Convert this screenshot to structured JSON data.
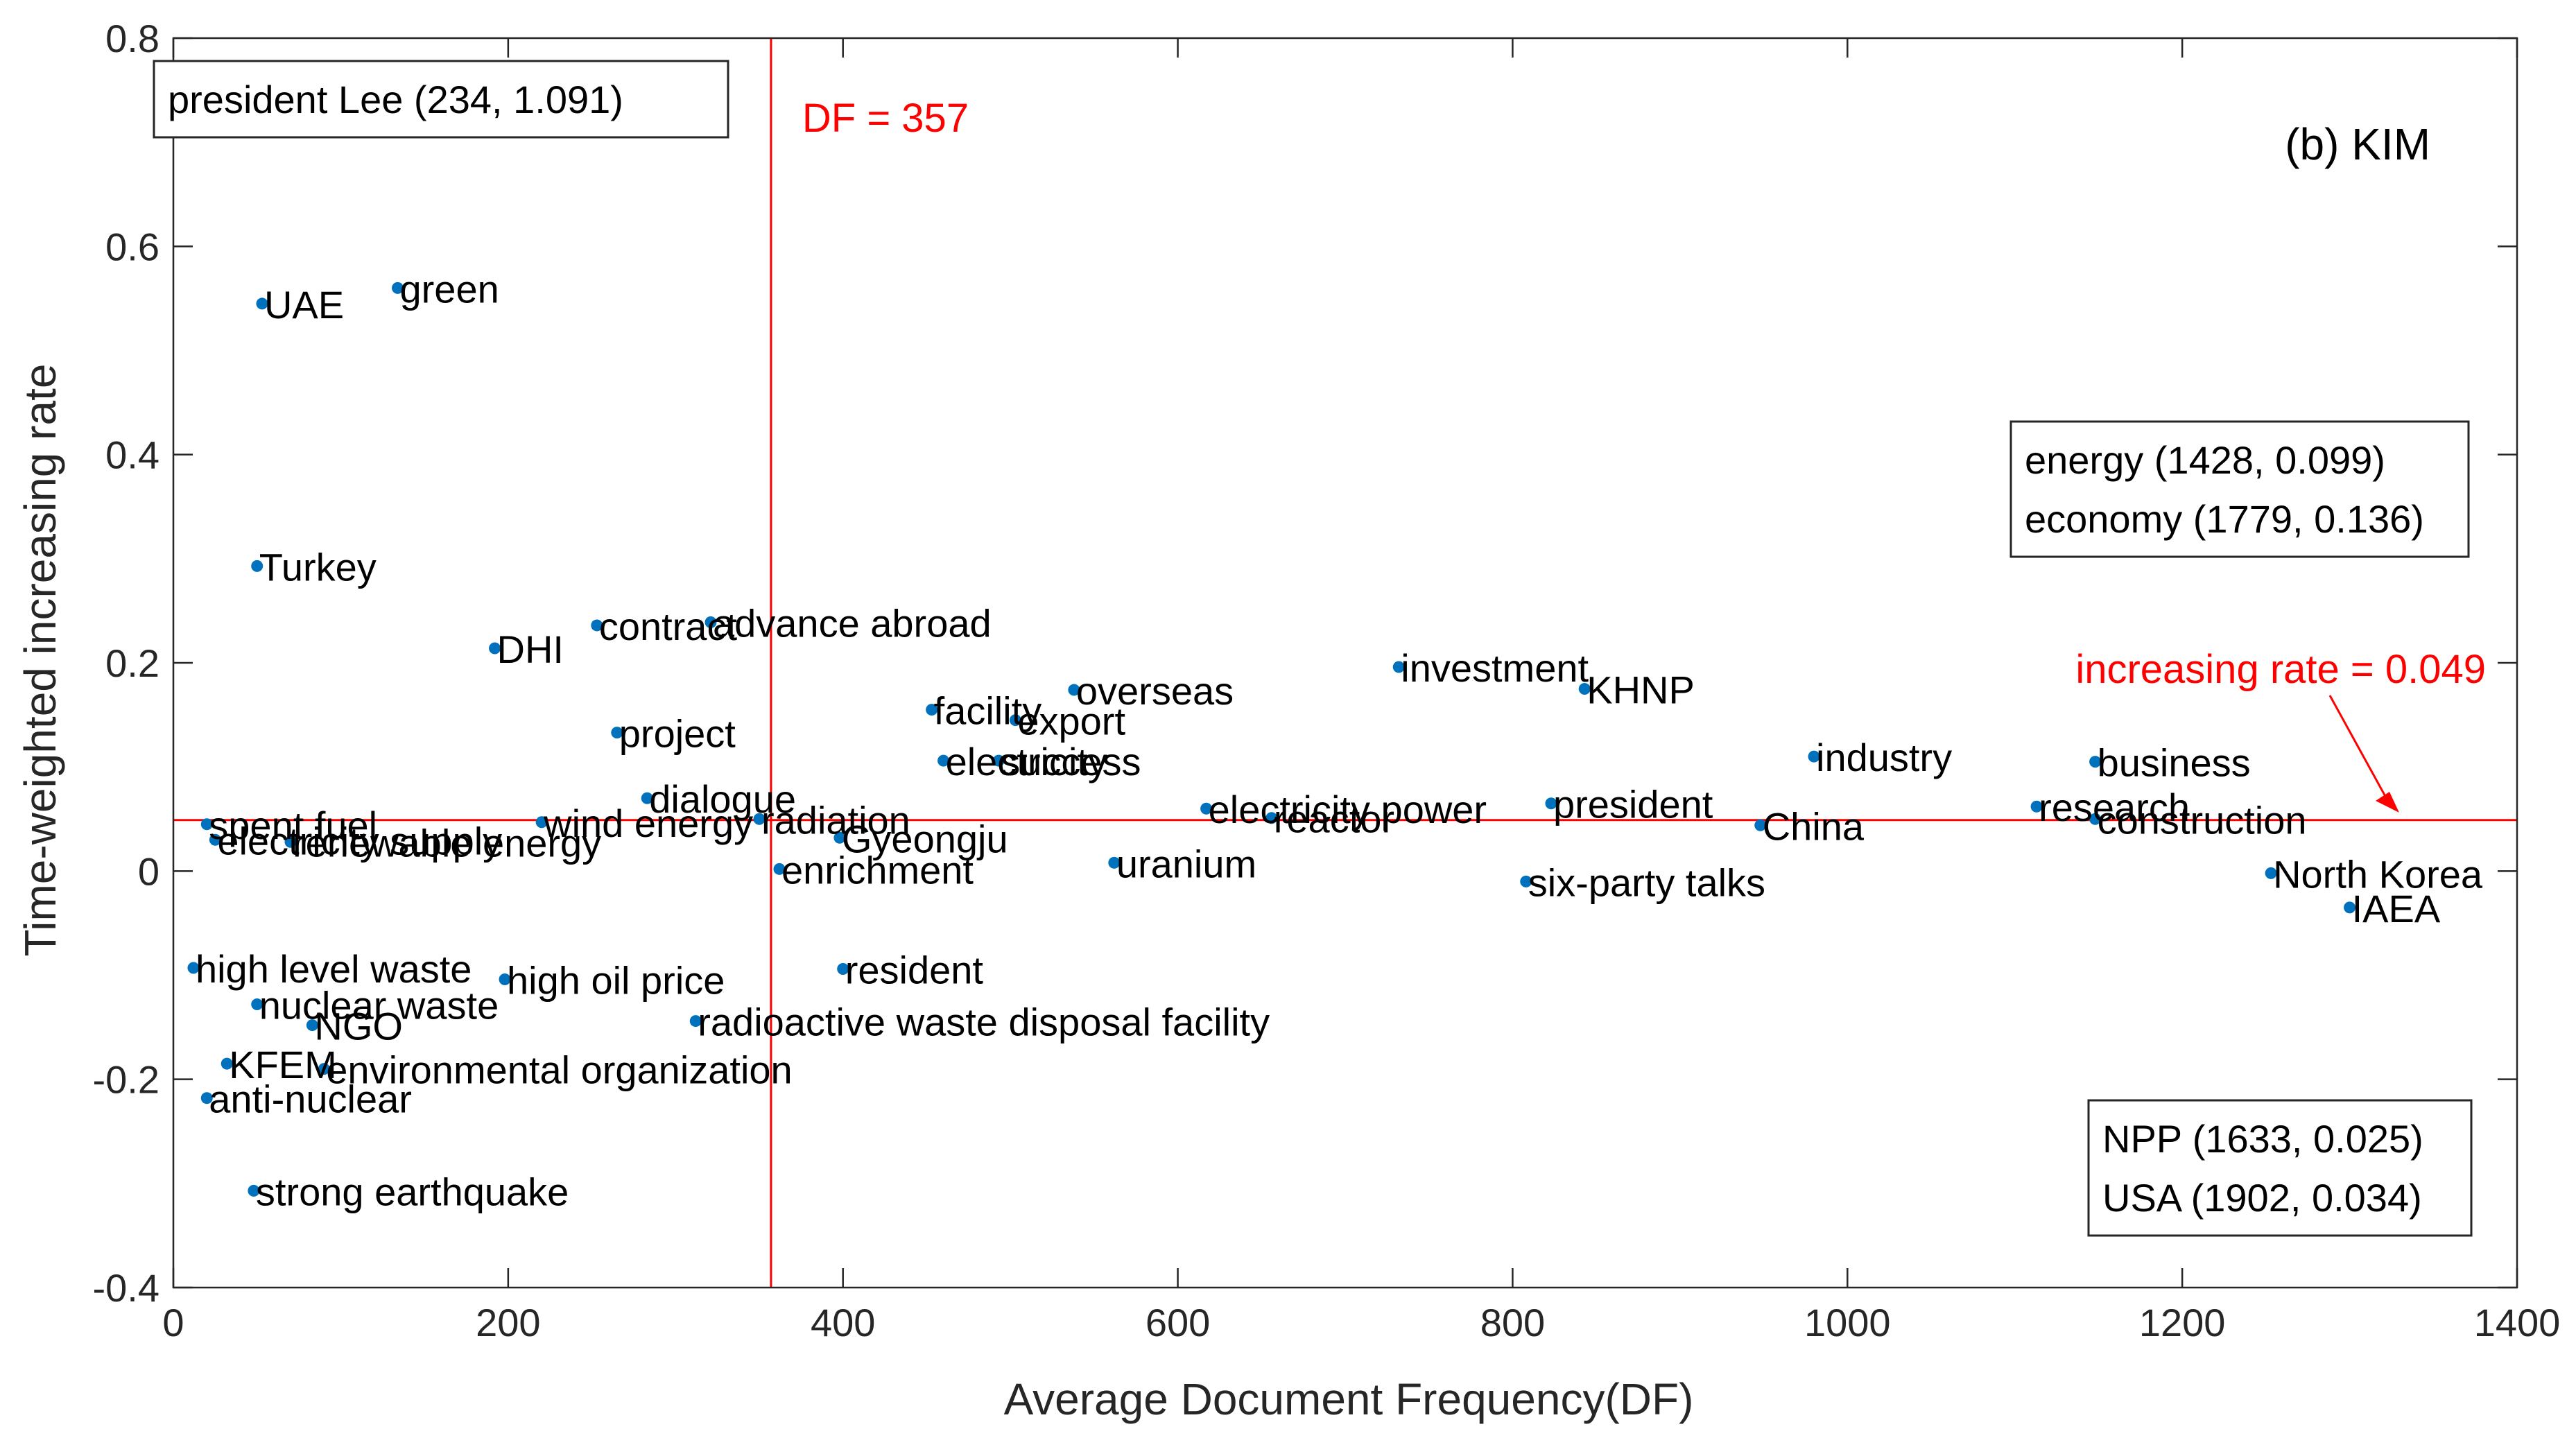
{
  "chart_data": {
    "type": "scatter",
    "title": "",
    "panel_label": "(b) KIM",
    "xlabel": "Average Document Frequency(DF)",
    "ylabel": "Time-weighted increasing rate",
    "xlim": [
      0,
      1400
    ],
    "ylim": [
      -0.4,
      0.8
    ],
    "xticks": [
      0,
      200,
      400,
      600,
      800,
      1000,
      1200,
      1400
    ],
    "yticks": [
      -0.4,
      -0.2,
      0,
      0.2,
      0.4,
      0.6,
      0.8
    ],
    "grid": false,
    "marker_color": "#0072BD",
    "reference_color": "#ff0000",
    "reference_lines": {
      "vertical": {
        "x": 357,
        "label": "DF = 357"
      },
      "horizontal": {
        "y": 0.049,
        "label": "increasing rate = 0.049"
      }
    },
    "info_boxes": {
      "top_left": [
        "president Lee (234, 1.091)"
      ],
      "right": [
        "energy (1428, 0.099)",
        "economy (1779, 0.136)"
      ],
      "bottom_right": [
        "NPP (1633, 0.025)",
        "USA (1902, 0.034)"
      ]
    },
    "points": [
      {
        "label": "UAE",
        "x": 53,
        "y": 0.545
      },
      {
        "label": "green",
        "x": 134,
        "y": 0.56
      },
      {
        "label": "Turkey",
        "x": 50,
        "y": 0.293
      },
      {
        "label": "DHI",
        "x": 192,
        "y": 0.214
      },
      {
        "label": "contract",
        "x": 253,
        "y": 0.236
      },
      {
        "label": "advance abroad",
        "x": 321,
        "y": 0.239
      },
      {
        "label": "project",
        "x": 265,
        "y": 0.133
      },
      {
        "label": "dialogue",
        "x": 283,
        "y": 0.07
      },
      {
        "label": "spent fuel",
        "x": 20,
        "y": 0.045
      },
      {
        "label": "electricity supply",
        "x": 25,
        "y": 0.03
      },
      {
        "label": "renewable energy",
        "x": 70,
        "y": 0.028
      },
      {
        "label": "wind energy",
        "x": 220,
        "y": 0.047
      },
      {
        "label": "radiation",
        "x": 350,
        "y": 0.05
      },
      {
        "label": "Gyeongju",
        "x": 398,
        "y": 0.032
      },
      {
        "label": "enrichment",
        "x": 362,
        "y": 0.002
      },
      {
        "label": "facility",
        "x": 453,
        "y": 0.155
      },
      {
        "label": "export",
        "x": 503,
        "y": 0.145
      },
      {
        "label": "overseas",
        "x": 538,
        "y": 0.174
      },
      {
        "label": "electricity",
        "x": 460,
        "y": 0.106
      },
      {
        "label": "success",
        "x": 493,
        "y": 0.106
      },
      {
        "label": "uranium",
        "x": 562,
        "y": 0.008
      },
      {
        "label": "electricity power",
        "x": 617,
        "y": 0.06
      },
      {
        "label": "reactor",
        "x": 656,
        "y": 0.051
      },
      {
        "label": "investment",
        "x": 732,
        "y": 0.196
      },
      {
        "label": "KHNP",
        "x": 843,
        "y": 0.175
      },
      {
        "label": "president",
        "x": 823,
        "y": 0.065
      },
      {
        "label": "six-party talks",
        "x": 808,
        "y": -0.01
      },
      {
        "label": "China",
        "x": 948,
        "y": 0.044
      },
      {
        "label": "industry",
        "x": 980,
        "y": 0.11
      },
      {
        "label": "business",
        "x": 1148,
        "y": 0.105
      },
      {
        "label": "research",
        "x": 1113,
        "y": 0.062
      },
      {
        "label": "construction",
        "x": 1148,
        "y": 0.05
      },
      {
        "label": "North Korea",
        "x": 1253,
        "y": -0.002
      },
      {
        "label": "IAEA",
        "x": 1300,
        "y": -0.035
      },
      {
        "label": "high level waste",
        "x": 12,
        "y": -0.093
      },
      {
        "label": "high oil price",
        "x": 198,
        "y": -0.104
      },
      {
        "label": "nuclear waste",
        "x": 50,
        "y": -0.128
      },
      {
        "label": "NGO",
        "x": 83,
        "y": -0.148
      },
      {
        "label": "KFEM",
        "x": 32,
        "y": -0.185
      },
      {
        "label": "environmental organization",
        "x": 90,
        "y": -0.19
      },
      {
        "label": "anti-nuclear",
        "x": 20,
        "y": -0.218
      },
      {
        "label": "strong earthquake",
        "x": 48,
        "y": -0.307
      },
      {
        "label": "resident",
        "x": 400,
        "y": -0.094
      },
      {
        "label": "radioactive waste disposal facility",
        "x": 312,
        "y": -0.144
      }
    ]
  }
}
